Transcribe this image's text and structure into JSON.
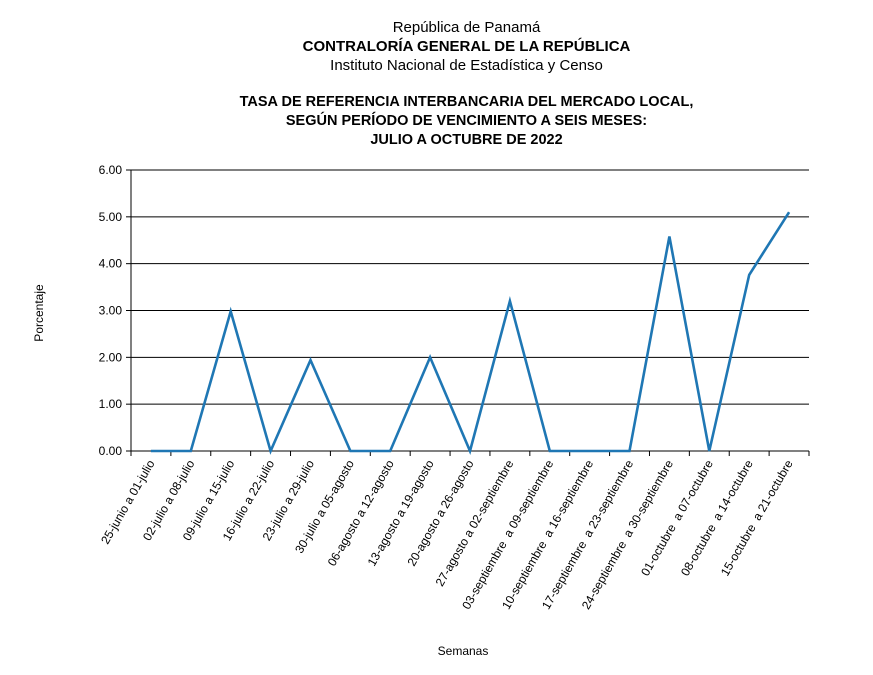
{
  "header": {
    "country": "República de Panamá",
    "organization": "CONTRALORÍA GENERAL DE LA REPÚBLICA",
    "institute": "Instituto  Nacional de Estadística y Censo"
  },
  "chart_data": {
    "type": "line",
    "title_lines": [
      "TASA DE REFERENCIA INTERBANCARIA DEL MERCADO LOCAL,",
      "SEGÚN PERÍODO DE VENCIMIENTO A SEIS MESES:",
      "JULIO A OCTUBRE DE 2022"
    ],
    "xlabel": "Semanas",
    "ylabel": "Porcentaje",
    "ylim": [
      0,
      6
    ],
    "yticks": [
      "0.00",
      "1.00",
      "2.00",
      "3.00",
      "4.00",
      "5.00",
      "6.00"
    ],
    "grid": true,
    "line_color": "#1f77b4",
    "categories": [
      "25-junio a 01-julio",
      "02-julio a 08-julio",
      "09-julio a 15-julio",
      "16-julio a 22-julio",
      "23-julio a 29-julio",
      "30-julio a 05-agosto",
      "06-agosto a 12-agosto",
      "13-agosto a 19-agosto",
      "20-agosto a 26-agosto",
      "27-agosto a 02-septiembre",
      "03-septiembre  a 09-septiembre",
      "10-septiembre  a 16-septiembre",
      "17-septiembre  a 23-septiembre",
      "24-septiembre  a 30-septiembre",
      "01-octubre  a 07-octubre",
      "08-octubre  a 14-octubre",
      "15-octubre  a 21-octubre"
    ],
    "values": [
      0,
      0,
      2.98,
      0,
      1.94,
      0,
      0,
      2.0,
      0,
      3.2,
      0,
      0,
      0,
      4.58,
      0,
      3.76,
      5.1
    ]
  }
}
